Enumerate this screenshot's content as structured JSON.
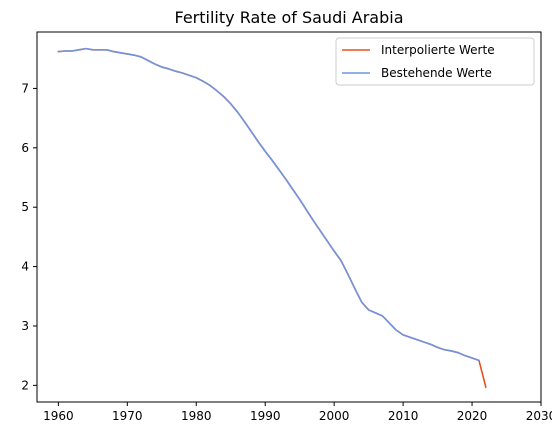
{
  "chart_data": {
    "type": "line",
    "title": "Fertility Rate of Saudi Arabia",
    "xlabel": "",
    "ylabel": "",
    "xlim": [
      1956.9,
      2030
    ],
    "ylim": [
      1.72,
      7.95
    ],
    "x_ticks": [
      1960,
      1970,
      1980,
      1990,
      2000,
      2010,
      2020,
      2030
    ],
    "y_ticks": [
      2,
      3,
      4,
      5,
      6,
      7
    ],
    "grid": false,
    "legend_position": "top-right",
    "series": [
      {
        "name": "Interpolierte Werte",
        "color": "#e8501e",
        "x": [
          1960,
          1961,
          1962,
          1963,
          1964,
          1965,
          1966,
          1967,
          1968,
          1969,
          1970,
          1971,
          1972,
          1973,
          1974,
          1975,
          1976,
          1977,
          1978,
          1979,
          1980,
          1981,
          1982,
          1983,
          1984,
          1985,
          1986,
          1987,
          1988,
          1989,
          1990,
          1991,
          1992,
          1993,
          1994,
          1995,
          1996,
          1997,
          1998,
          1999,
          2000,
          2001,
          2002,
          2003,
          2004,
          2005,
          2006,
          2007,
          2008,
          2009,
          2010,
          2011,
          2012,
          2013,
          2014,
          2015,
          2016,
          2017,
          2018,
          2019,
          2020,
          2021,
          2022
        ],
        "y": [
          7.62,
          7.63,
          7.63,
          7.65,
          7.67,
          7.65,
          7.65,
          7.65,
          7.62,
          7.6,
          7.58,
          7.56,
          7.53,
          7.47,
          7.41,
          7.36,
          7.33,
          7.29,
          7.26,
          7.22,
          7.18,
          7.12,
          7.05,
          6.96,
          6.86,
          6.74,
          6.6,
          6.44,
          6.27,
          6.1,
          5.94,
          5.79,
          5.63,
          5.47,
          5.3,
          5.13,
          4.95,
          4.77,
          4.6,
          4.43,
          4.26,
          4.1,
          3.87,
          3.63,
          3.4,
          3.27,
          3.22,
          3.17,
          3.05,
          2.93,
          2.85,
          2.81,
          2.77,
          2.73,
          2.69,
          2.64,
          2.6,
          2.58,
          2.55,
          2.5,
          2.46,
          2.42,
          1.97
        ]
      },
      {
        "name": "Bestehende Werte",
        "color": "#6f95e0",
        "x": [
          1960,
          1961,
          1962,
          1963,
          1964,
          1965,
          1966,
          1967,
          1968,
          1969,
          1970,
          1971,
          1972,
          1973,
          1974,
          1975,
          1976,
          1977,
          1978,
          1979,
          1980,
          1981,
          1982,
          1983,
          1984,
          1985,
          1986,
          1987,
          1988,
          1989,
          1990,
          1991,
          1992,
          1993,
          1994,
          1995,
          1996,
          1997,
          1998,
          1999,
          2000,
          2001,
          2002,
          2003,
          2004,
          2005,
          2006,
          2007,
          2008,
          2009,
          2010,
          2011,
          2012,
          2013,
          2014,
          2015,
          2016,
          2017,
          2018,
          2019,
          2020,
          2021
        ],
        "y": [
          7.62,
          7.63,
          7.63,
          7.65,
          7.67,
          7.65,
          7.65,
          7.65,
          7.62,
          7.6,
          7.58,
          7.56,
          7.53,
          7.47,
          7.41,
          7.36,
          7.33,
          7.29,
          7.26,
          7.22,
          7.18,
          7.12,
          7.05,
          6.96,
          6.86,
          6.74,
          6.6,
          6.44,
          6.27,
          6.1,
          5.94,
          5.79,
          5.63,
          5.47,
          5.3,
          5.13,
          4.95,
          4.77,
          4.6,
          4.43,
          4.26,
          4.1,
          3.87,
          3.63,
          3.4,
          3.27,
          3.22,
          3.17,
          3.05,
          2.93,
          2.85,
          2.81,
          2.77,
          2.73,
          2.69,
          2.64,
          2.6,
          2.58,
          2.55,
          2.5,
          2.46,
          2.42
        ]
      }
    ]
  }
}
